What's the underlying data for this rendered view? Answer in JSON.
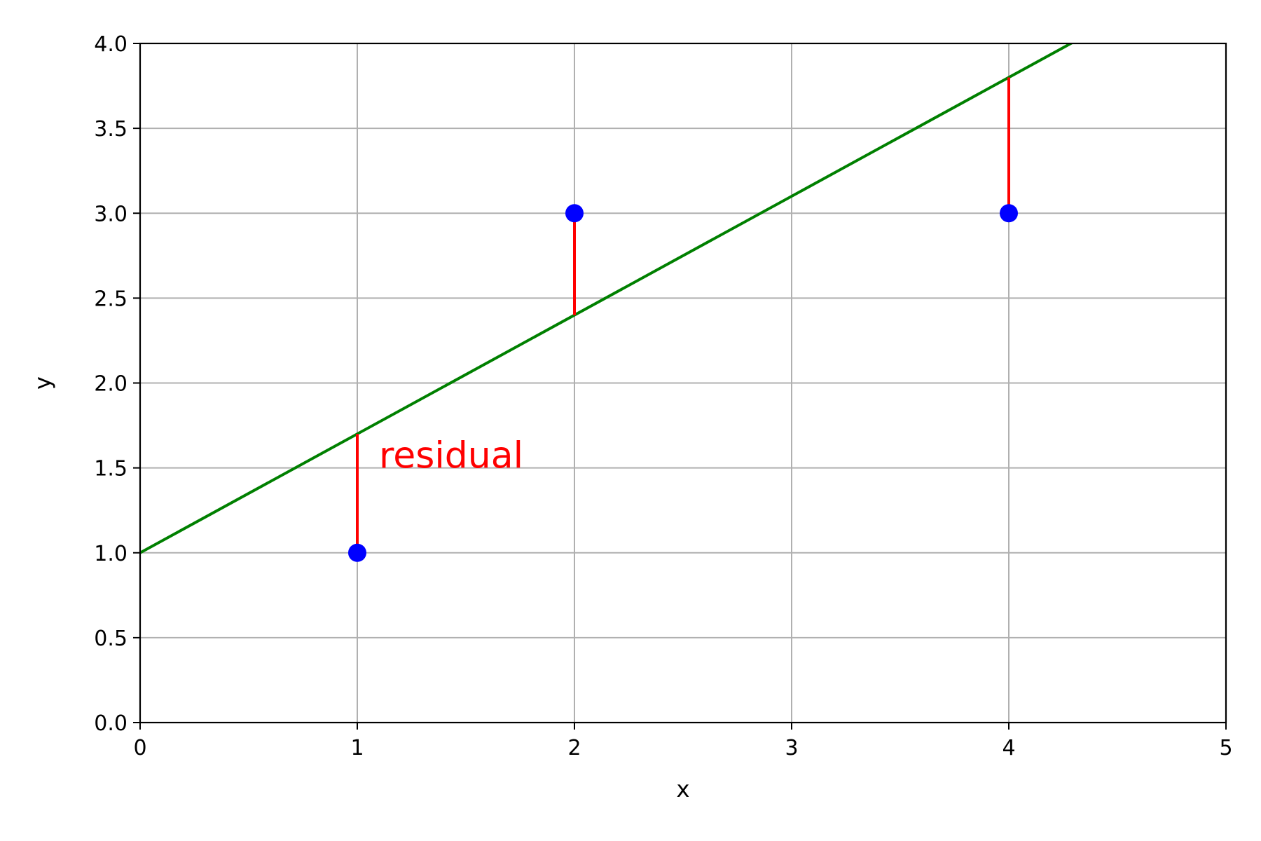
{
  "chart_data": {
    "type": "scatter",
    "title": "",
    "xlabel": "x",
    "ylabel": "y",
    "xlim": [
      0,
      5
    ],
    "ylim": [
      0,
      4
    ],
    "x_ticks": [
      0,
      1,
      2,
      3,
      4,
      5
    ],
    "x_tick_labels": [
      "0",
      "1",
      "2",
      "3",
      "4",
      "5"
    ],
    "y_ticks": [
      0,
      0.5,
      1,
      1.5,
      2,
      2.5,
      3,
      3.5,
      4
    ],
    "y_tick_labels": [
      "0.0",
      "0.5",
      "1.0",
      "1.5",
      "2.0",
      "2.5",
      "3.0",
      "3.5",
      "4.0"
    ],
    "grid": true,
    "points": {
      "x": [
        1,
        2,
        4
      ],
      "y": [
        1,
        3,
        3
      ],
      "color": "#0000ff"
    },
    "fit_line": {
      "intercept": 1.0,
      "slope": 0.7,
      "color": "#008000"
    },
    "residuals": {
      "color": "#ff0000"
    },
    "annotation": {
      "text": "residual",
      "x": 1.1,
      "y": 1.5,
      "color": "#ff0000"
    }
  }
}
